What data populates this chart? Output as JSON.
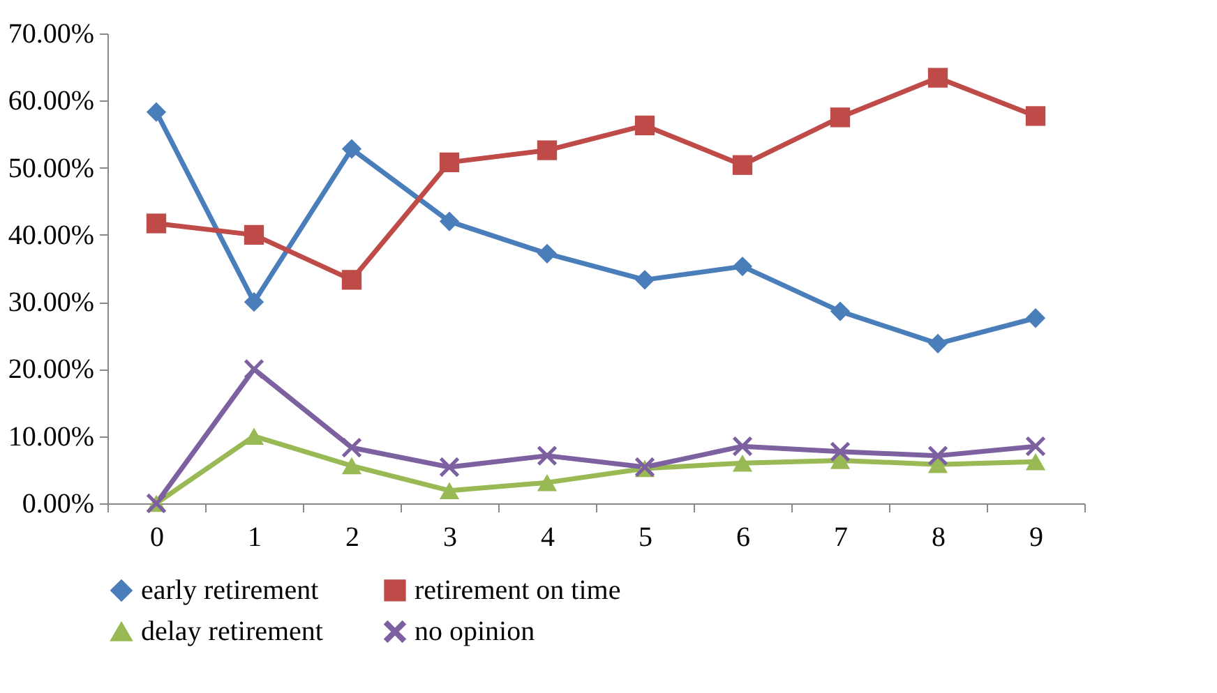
{
  "chart_data": {
    "type": "line",
    "categories": [
      "0",
      "1",
      "2",
      "3",
      "4",
      "5",
      "6",
      "7",
      "8",
      "9"
    ],
    "ylim": [
      0,
      70
    ],
    "yticks": [
      {
        "value": 0,
        "label": "0.00%"
      },
      {
        "value": 10,
        "label": "10.00%"
      },
      {
        "value": 20,
        "label": "20.00%"
      },
      {
        "value": 30,
        "label": "30.00%"
      },
      {
        "value": 40,
        "label": "40.00%"
      },
      {
        "value": 50,
        "label": "50.00%"
      },
      {
        "value": 60,
        "label": "60.00%"
      },
      {
        "value": 70,
        "label": "70.00%"
      }
    ],
    "grid": false,
    "legend": "bottom",
    "line_style": "solid",
    "series": [
      {
        "name": "early retirement",
        "color": "#4a7ebb",
        "marker": "diamond",
        "values": [
          58.3,
          30.0,
          52.8,
          42.0,
          37.2,
          33.3,
          35.3,
          28.6,
          23.8,
          27.6
        ]
      },
      {
        "name": "retirement on time",
        "color": "#be4b48",
        "marker": "square",
        "values": [
          41.7,
          40.0,
          33.3,
          50.8,
          52.6,
          56.3,
          50.4,
          57.5,
          63.4,
          57.7
        ]
      },
      {
        "name": "delay retirement",
        "color": "#98b954",
        "marker": "triangle",
        "values": [
          0,
          10.0,
          5.6,
          1.9,
          3.1,
          5.2,
          6.0,
          6.4,
          5.8,
          6.2
        ]
      },
      {
        "name": "no opinion",
        "color": "#7d60a0",
        "marker": "cross",
        "values": [
          0,
          20.0,
          8.3,
          5.4,
          7.1,
          5.4,
          8.5,
          7.7,
          7.1,
          8.5
        ]
      }
    ]
  }
}
